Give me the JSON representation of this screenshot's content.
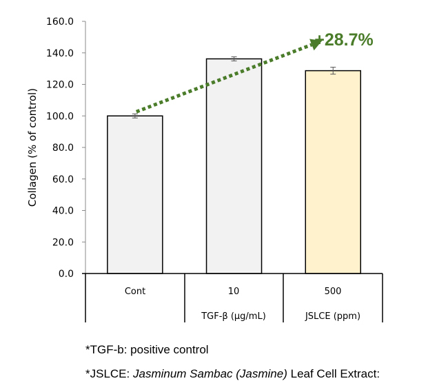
{
  "chart_data": {
    "type": "bar",
    "categories": [
      "Cont",
      "10",
      "500"
    ],
    "group_labels": [
      "",
      "TGF-β (μg/mL)",
      "JSLCE (ppm)"
    ],
    "values": [
      100.0,
      136.2,
      128.7
    ],
    "errors": [
      1.3,
      1.3,
      2.2
    ],
    "colors": [
      "#f2f2f2",
      "#f2f2f2",
      "#fff2cc"
    ],
    "ylabel": "Collagen (% of control)",
    "xlabel": "",
    "ylim": [
      0,
      160
    ],
    "yticks": [
      "0.0",
      "20.0",
      "40.0",
      "60.0",
      "80.0",
      "100.0",
      "120.0",
      "140.0",
      "160.0"
    ],
    "annotation": {
      "text": "+28.7%",
      "color": "#4a7c2a",
      "from": "Cont",
      "to": "500"
    },
    "grid": false
  },
  "notes": {
    "line1": "*TGF-b: positive control",
    "line2_prefix": "*JSLCE: ",
    "line2_italic": "Jasminum Sambac (Jasmine)",
    "line2_suffix": " Leaf Cell Extract:"
  }
}
